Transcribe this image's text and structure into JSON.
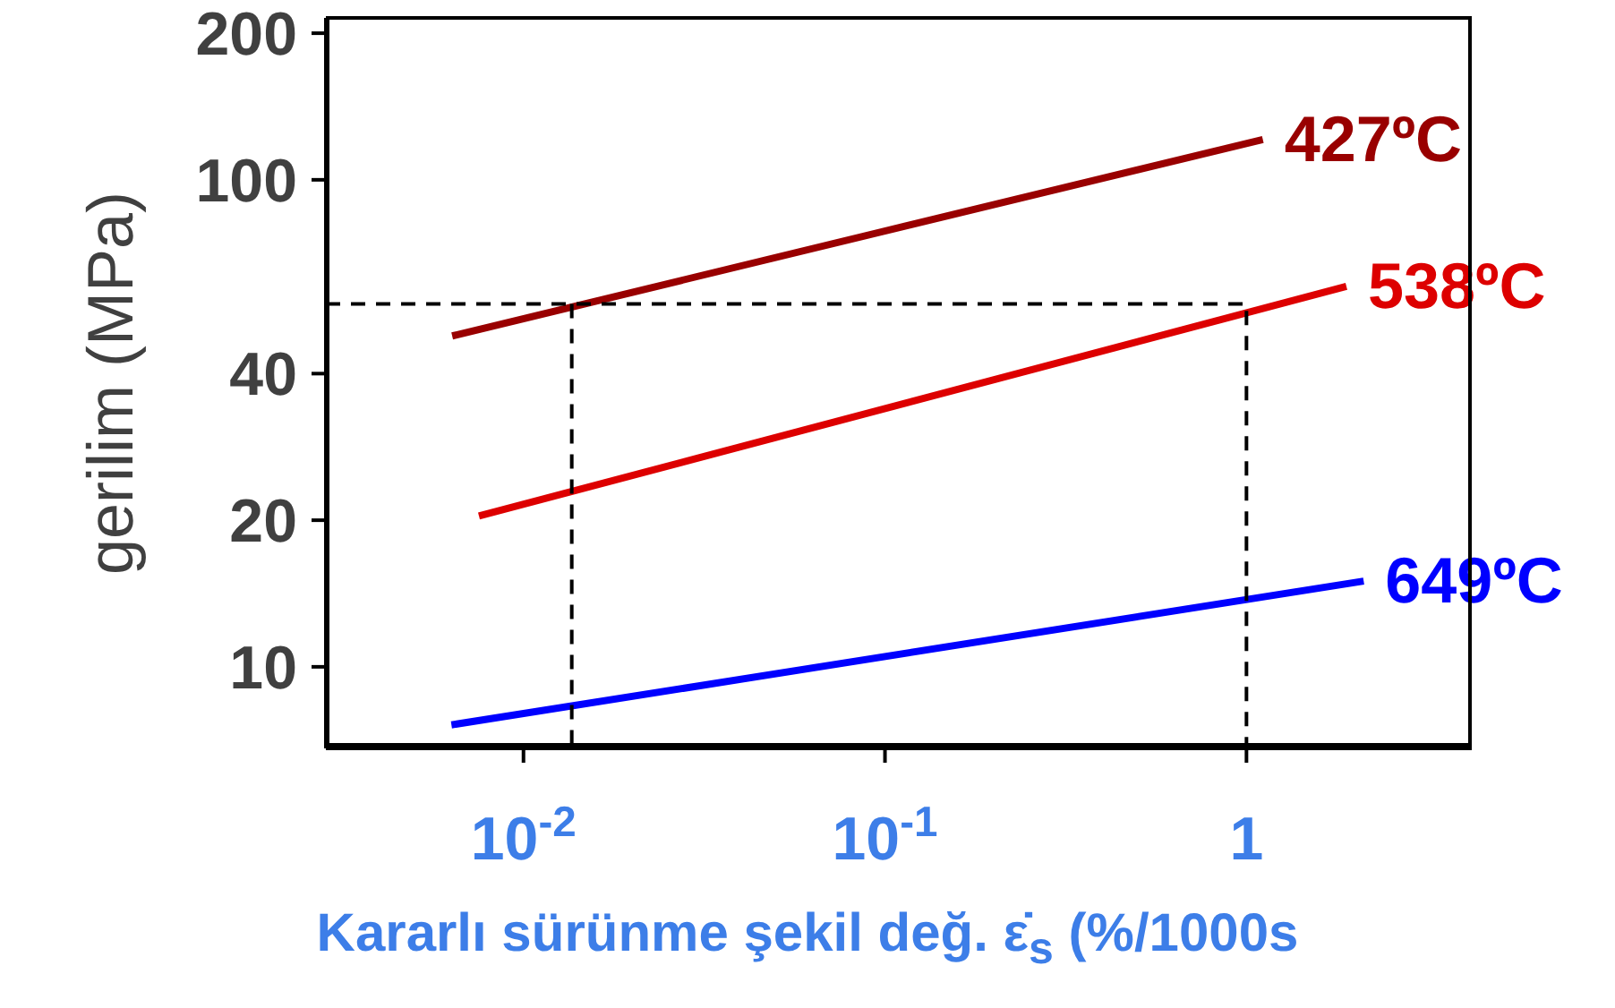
{
  "chart_data": {
    "type": "line",
    "xlabel": "Kararlı sürünme şekil değ. ε̇$_{s}$ (%/1000s",
    "ylabel": "gerilim (MPa)",
    "log": "xy",
    "xlim": [
      0.00284,
      4.2
    ],
    "ylim": [
      6.8,
      215
    ],
    "xticks": [
      {
        "value": 0.01,
        "label": "10$^{-2}$"
      },
      {
        "value": 0.1,
        "label": "10$^{-1}$"
      },
      1
    ],
    "yticks": [
      10,
      20,
      40,
      100,
      200
    ],
    "marker": "none",
    "series": [
      {
        "name": "427ºC",
        "color": "#990000",
        "x": [
          0.00635,
          1.11
        ],
        "values": [
          47.8,
          121
        ]
      },
      {
        "name": "538ºC",
        "color": "#dd0000",
        "x": [
          0.00753,
          1.89
        ],
        "values": [
          20.4,
          60.4
        ]
      },
      {
        "name": "649ºC",
        "color": "#0000ff",
        "x": [
          0.00632,
          2.11
        ],
        "values": [
          7.6,
          15.0
        ]
      },
      {
        "color": "#000000",
        "line_style": "dashed",
        "x": [
          0.00284,
          1,
          1
        ],
        "values": [
          55.6,
          55.6,
          6.8
        ]
      },
      {
        "color": "#000000",
        "line_style": "dashed",
        "x": [
          0.0136,
          0.0136
        ],
        "values": [
          55.6,
          6.8
        ]
      }
    ]
  }
}
